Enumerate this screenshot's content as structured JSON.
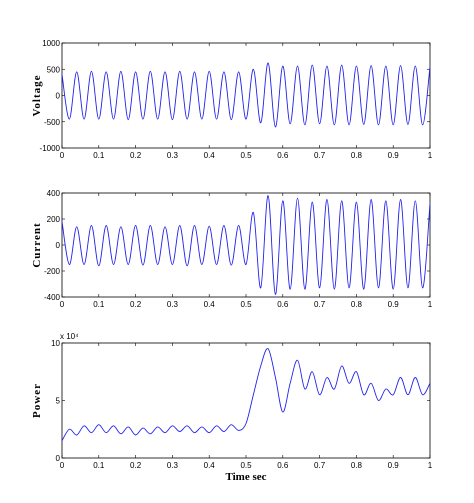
{
  "chart_data": [
    {
      "type": "line",
      "ylabel": "Voltage",
      "x": [
        0,
        0.02,
        0.04,
        0.06,
        0.08,
        0.1,
        0.12,
        0.14,
        0.16,
        0.18,
        0.2,
        0.22,
        0.24,
        0.26,
        0.28,
        0.3,
        0.32,
        0.34,
        0.36,
        0.38,
        0.4,
        0.42,
        0.44,
        0.46,
        0.48,
        0.5,
        0.52,
        0.54,
        0.56,
        0.58,
        0.6,
        0.62,
        0.64,
        0.66,
        0.68,
        0.7,
        0.72,
        0.74,
        0.76,
        0.78,
        0.8,
        0.82,
        0.84,
        0.86,
        0.88,
        0.9,
        0.92,
        0.94,
        0.96,
        0.98,
        1
      ],
      "values": [
        400,
        -450,
        450,
        -450,
        460,
        -450,
        450,
        -450,
        460,
        -460,
        450,
        -450,
        460,
        -450,
        450,
        -460,
        460,
        -450,
        450,
        -450,
        460,
        -450,
        450,
        -460,
        450,
        -450,
        500,
        -520,
        620,
        -600,
        560,
        -540,
        560,
        -560,
        580,
        -540,
        560,
        -560,
        580,
        -560,
        560,
        -550,
        570,
        -560,
        560,
        -560,
        570,
        -550,
        560,
        -560,
        550
      ],
      "color": "#2222ee",
      "xlim": [
        0,
        1
      ],
      "xticks": [
        0,
        0.1,
        0.2,
        0.3,
        0.4,
        0.5,
        0.6,
        0.7,
        0.8,
        0.9,
        1
      ],
      "ylim": [
        -1000,
        1000
      ],
      "yticks": [
        -1000,
        -500,
        0,
        500,
        1000
      ]
    },
    {
      "type": "line",
      "ylabel": "Current",
      "x": [
        0,
        0.02,
        0.04,
        0.06,
        0.08,
        0.1,
        0.12,
        0.14,
        0.16,
        0.18,
        0.2,
        0.22,
        0.24,
        0.26,
        0.28,
        0.3,
        0.32,
        0.34,
        0.36,
        0.38,
        0.4,
        0.42,
        0.44,
        0.46,
        0.48,
        0.5,
        0.52,
        0.54,
        0.56,
        0.58,
        0.6,
        0.62,
        0.64,
        0.66,
        0.68,
        0.7,
        0.72,
        0.74,
        0.76,
        0.78,
        0.8,
        0.82,
        0.84,
        0.86,
        0.88,
        0.9,
        0.92,
        0.94,
        0.96,
        0.98,
        1
      ],
      "values": [
        180,
        -150,
        140,
        -150,
        150,
        -160,
        150,
        -150,
        140,
        -150,
        150,
        -155,
        150,
        -150,
        140,
        -150,
        150,
        -160,
        150,
        -150,
        145,
        -150,
        150,
        -155,
        150,
        -150,
        250,
        -330,
        380,
        -380,
        340,
        -340,
        360,
        -340,
        330,
        -330,
        350,
        -340,
        340,
        -330,
        330,
        -340,
        350,
        -330,
        340,
        -340,
        350,
        -330,
        340,
        -330,
        320
      ],
      "color": "#2222ee",
      "xlim": [
        0,
        1
      ],
      "xticks": [
        0,
        0.1,
        0.2,
        0.3,
        0.4,
        0.5,
        0.6,
        0.7,
        0.8,
        0.9,
        1
      ],
      "ylim": [
        -400,
        400
      ],
      "yticks": [
        -400,
        -200,
        0,
        200,
        400
      ]
    },
    {
      "type": "line",
      "ylabel": "Power",
      "xlabel": "Time sec",
      "axis_multiplier": "x 10⁴",
      "x": [
        0,
        0.02,
        0.04,
        0.06,
        0.08,
        0.1,
        0.12,
        0.14,
        0.16,
        0.18,
        0.2,
        0.22,
        0.24,
        0.26,
        0.28,
        0.3,
        0.32,
        0.34,
        0.36,
        0.38,
        0.4,
        0.42,
        0.44,
        0.46,
        0.48,
        0.5,
        0.52,
        0.54,
        0.56,
        0.58,
        0.6,
        0.62,
        0.64,
        0.66,
        0.68,
        0.7,
        0.72,
        0.74,
        0.76,
        0.78,
        0.8,
        0.82,
        0.84,
        0.86,
        0.88,
        0.9,
        0.92,
        0.94,
        0.96,
        0.98,
        1
      ],
      "values": [
        1.5,
        2.5,
        2.0,
        2.8,
        2.2,
        2.9,
        2.2,
        2.8,
        2.1,
        2.7,
        2.0,
        2.6,
        2.1,
        2.7,
        2.2,
        2.8,
        2.3,
        2.8,
        2.2,
        2.7,
        2.2,
        2.8,
        2.3,
        2.9,
        2.4,
        3.0,
        5.5,
        8.0,
        9.5,
        7.0,
        4.0,
        6.5,
        8.5,
        6.0,
        7.5,
        5.5,
        7.0,
        6.0,
        8.0,
        6.5,
        7.5,
        5.5,
        6.5,
        5.0,
        6.0,
        5.5,
        7.0,
        5.5,
        7.0,
        5.5,
        6.5
      ],
      "color": "#2222ee",
      "xlim": [
        0,
        1
      ],
      "xticks": [
        0,
        0.1,
        0.2,
        0.3,
        0.4,
        0.5,
        0.6,
        0.7,
        0.8,
        0.9,
        1
      ],
      "ylim": [
        0,
        10
      ],
      "yticks": [
        0,
        5,
        10
      ]
    }
  ]
}
